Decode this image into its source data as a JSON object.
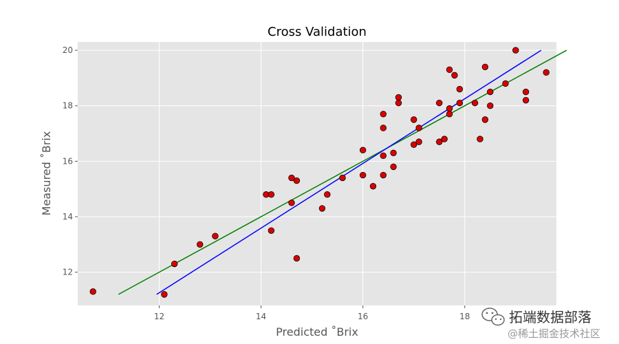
{
  "chart_data": {
    "type": "scatter",
    "title": "Cross Validation",
    "xlabel": "Predicted ˚Brix",
    "ylabel": "Measured ˚Brix",
    "xlim": [
      10.4,
      19.8
    ],
    "ylim": [
      10.8,
      20.3
    ],
    "xticks": [
      12,
      14,
      16,
      18
    ],
    "yticks": [
      12,
      14,
      16,
      18,
      20
    ],
    "grid": true,
    "colors": {
      "background": "#e5e5e5",
      "grid": "#ffffff",
      "points": "#dd0000",
      "point_edge": "#000000",
      "fit_line": "#008000",
      "ideal_line": "#0000ff"
    },
    "points": [
      {
        "x": 10.7,
        "y": 11.3
      },
      {
        "x": 12.1,
        "y": 11.2
      },
      {
        "x": 12.3,
        "y": 12.3
      },
      {
        "x": 12.8,
        "y": 13.0
      },
      {
        "x": 13.1,
        "y": 13.3
      },
      {
        "x": 14.1,
        "y": 14.8
      },
      {
        "x": 14.2,
        "y": 14.8
      },
      {
        "x": 14.2,
        "y": 13.5
      },
      {
        "x": 14.6,
        "y": 15.4
      },
      {
        "x": 14.6,
        "y": 14.5
      },
      {
        "x": 14.7,
        "y": 15.3
      },
      {
        "x": 14.7,
        "y": 12.5
      },
      {
        "x": 15.2,
        "y": 14.3
      },
      {
        "x": 15.3,
        "y": 14.8
      },
      {
        "x": 15.6,
        "y": 15.4
      },
      {
        "x": 16.0,
        "y": 16.4
      },
      {
        "x": 16.0,
        "y": 15.5
      },
      {
        "x": 16.2,
        "y": 15.1
      },
      {
        "x": 16.4,
        "y": 17.7
      },
      {
        "x": 16.4,
        "y": 17.2
      },
      {
        "x": 16.4,
        "y": 16.2
      },
      {
        "x": 16.4,
        "y": 15.5
      },
      {
        "x": 16.6,
        "y": 16.3
      },
      {
        "x": 16.6,
        "y": 15.8
      },
      {
        "x": 16.7,
        "y": 18.3
      },
      {
        "x": 16.7,
        "y": 18.1
      },
      {
        "x": 17.0,
        "y": 17.5
      },
      {
        "x": 17.0,
        "y": 16.6
      },
      {
        "x": 17.1,
        "y": 17.2
      },
      {
        "x": 17.1,
        "y": 16.7
      },
      {
        "x": 17.5,
        "y": 18.1
      },
      {
        "x": 17.5,
        "y": 16.7
      },
      {
        "x": 17.6,
        "y": 16.8
      },
      {
        "x": 17.7,
        "y": 17.9
      },
      {
        "x": 17.7,
        "y": 19.3
      },
      {
        "x": 17.8,
        "y": 19.1
      },
      {
        "x": 17.7,
        "y": 17.7
      },
      {
        "x": 17.9,
        "y": 18.6
      },
      {
        "x": 17.9,
        "y": 18.1
      },
      {
        "x": 18.2,
        "y": 18.1
      },
      {
        "x": 18.3,
        "y": 16.8
      },
      {
        "x": 18.4,
        "y": 19.4
      },
      {
        "x": 18.4,
        "y": 17.5
      },
      {
        "x": 18.5,
        "y": 18.5
      },
      {
        "x": 18.5,
        "y": 18.0
      },
      {
        "x": 18.8,
        "y": 18.8
      },
      {
        "x": 19.0,
        "y": 20.0
      },
      {
        "x": 19.2,
        "y": 18.5
      },
      {
        "x": 19.2,
        "y": 18.2
      },
      {
        "x": 19.6,
        "y": 19.2
      }
    ],
    "lines": [
      {
        "x": [
          11.2,
          20.0
        ],
        "y": [
          11.2,
          20.0
        ],
        "color": "#008000"
      },
      {
        "x": [
          11.95,
          19.5
        ],
        "y": [
          11.2,
          20.0
        ],
        "color": "#0000ff"
      }
    ]
  },
  "watermark": {
    "text": "拓端数据部落",
    "sub": "@稀土掘金技术社区"
  }
}
